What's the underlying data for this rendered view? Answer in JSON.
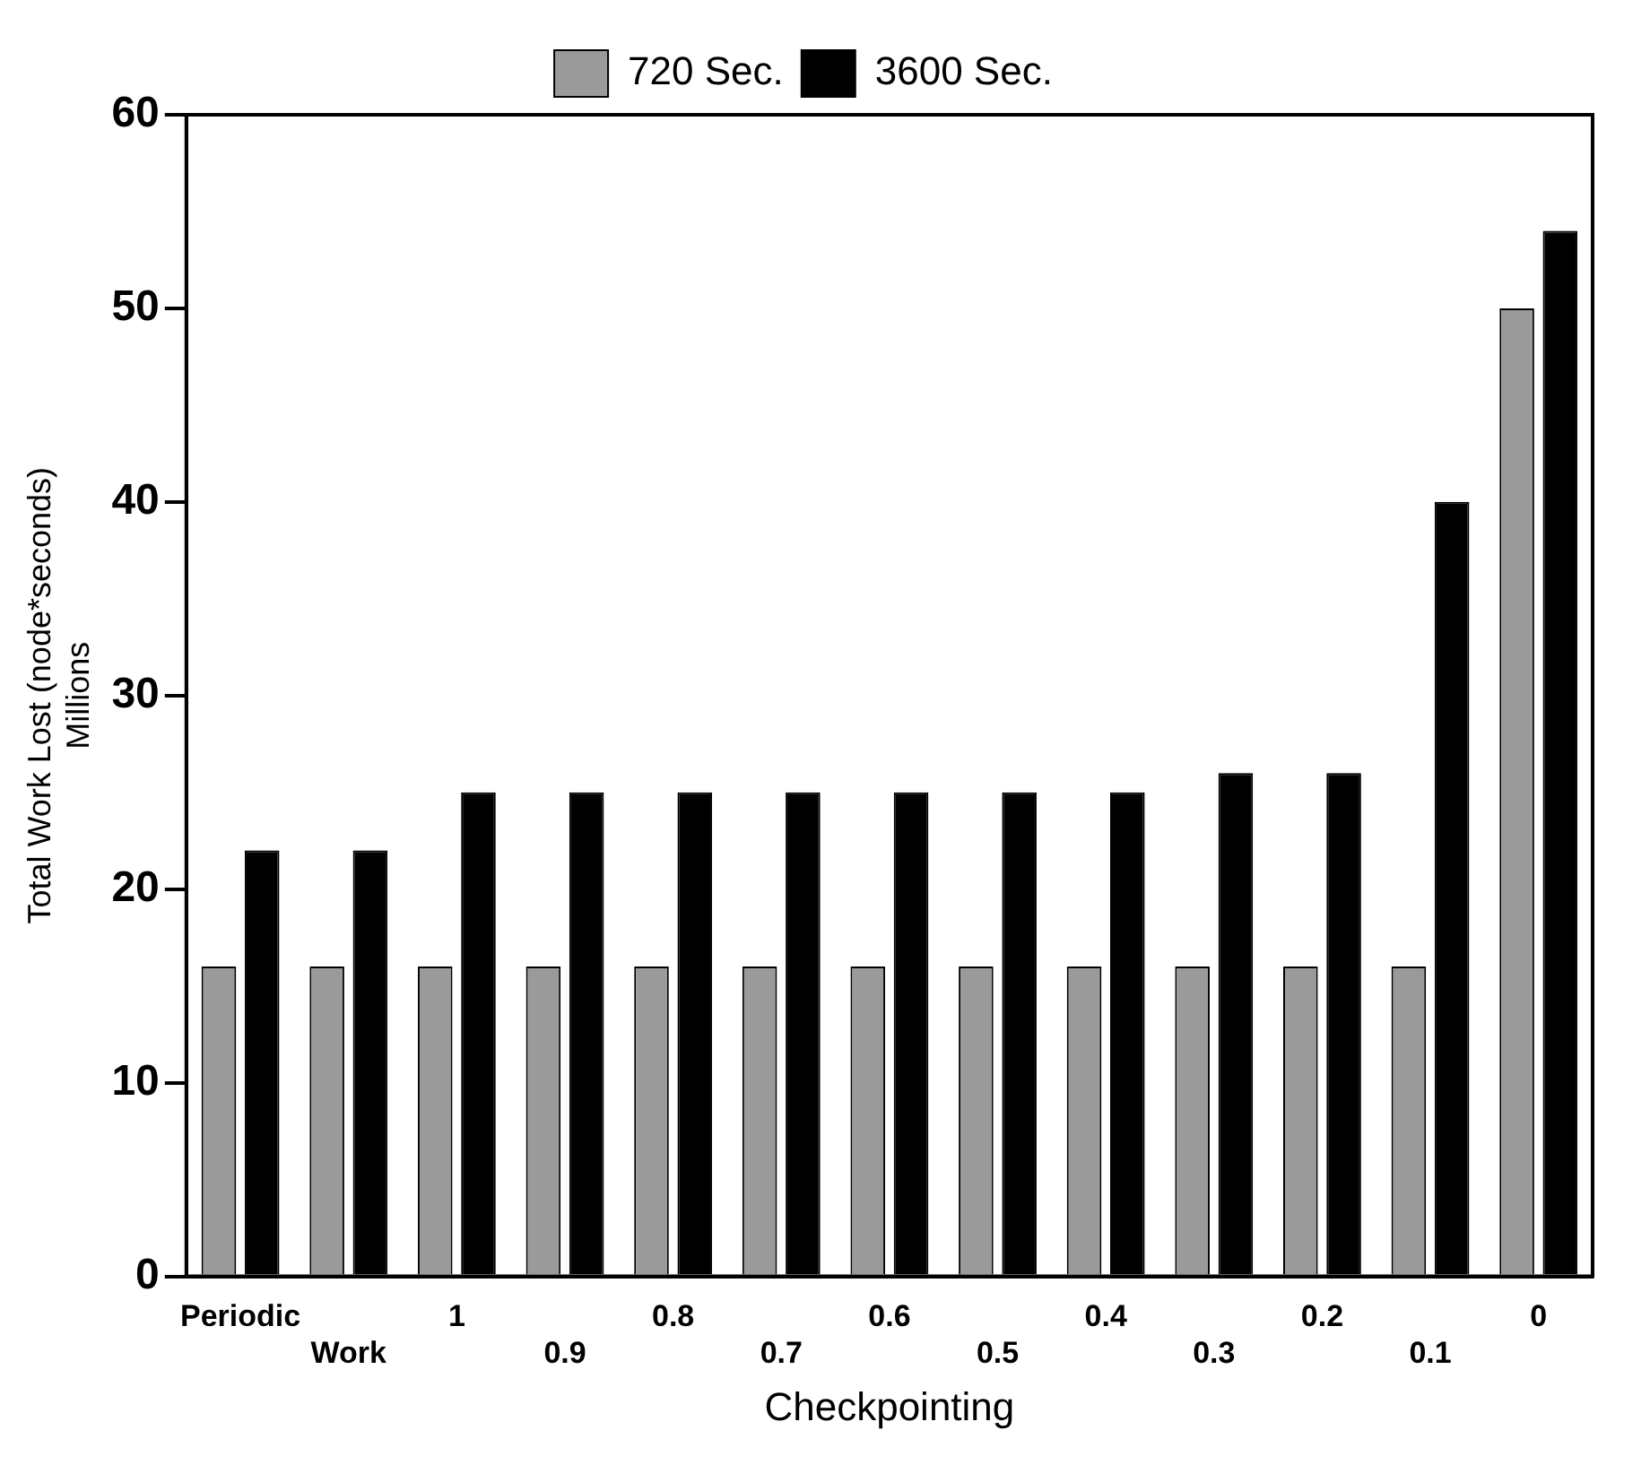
{
  "chart_data": {
    "type": "bar",
    "xlabel": "Checkpointing",
    "ylabel": "Total Work Lost (node*seconds)",
    "annotations": [
      "Millions"
    ],
    "categories": [
      "Periodic",
      "Work",
      "1",
      "0.9",
      "0.8",
      "0.7",
      "0.6",
      "0.5",
      "0.4",
      "0.3",
      "0.2",
      "0.1",
      "0"
    ],
    "series": [
      {
        "name": "720 Sec.",
        "color": "#9a9a9a",
        "values": [
          16,
          16,
          16,
          16,
          16,
          16,
          16,
          16,
          16,
          16,
          16,
          16,
          50
        ]
      },
      {
        "name": "3600 Sec.",
        "color": "#000000",
        "values": [
          22,
          22,
          25,
          25,
          25,
          25,
          25,
          25,
          25,
          26,
          26,
          40,
          54
        ]
      }
    ],
    "ylim": [
      0,
      60
    ],
    "yticks": [
      0,
      10,
      20,
      30,
      40,
      50,
      60
    ],
    "grid": false,
    "legend": "top"
  }
}
